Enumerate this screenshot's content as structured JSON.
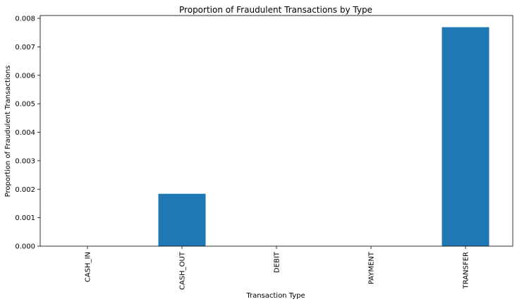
{
  "chart_data": {
    "type": "bar",
    "title": "Proportion of Fraudulent Transactions by Type",
    "xlabel": "Transaction Type",
    "ylabel": "Proportion of Fraudulent Transactions",
    "categories": [
      "CASH_IN",
      "CASH_OUT",
      "DEBIT",
      "PAYMENT",
      "TRANSFER"
    ],
    "values": [
      0.0,
      0.00184,
      0.0,
      0.0,
      0.00769
    ],
    "ylim": [
      0,
      0.0081
    ],
    "yticks": [
      "0.000",
      "0.001",
      "0.002",
      "0.003",
      "0.004",
      "0.005",
      "0.006",
      "0.007",
      "0.008"
    ],
    "grid": false,
    "bar_color": "#1f77b4"
  }
}
